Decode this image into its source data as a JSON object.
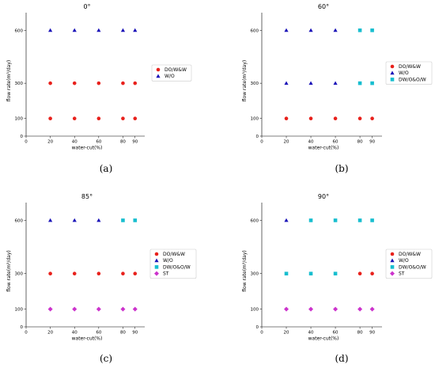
{
  "colors": {
    "DO/W&W": "#e8211c",
    "W/O": "#1a12b8",
    "DW/O&O/W": "#17becf",
    "ST": "#cc33cc"
  },
  "chart_data": [
    {
      "type": "scatter",
      "title": "0°",
      "caption": "(a)",
      "xlabel": "water-cut(%)",
      "ylabel": "flow rate(m³/day)",
      "xticks": [
        0,
        20,
        40,
        60,
        80,
        90
      ],
      "yticks": [
        0,
        100,
        300,
        600
      ],
      "xlim": [
        0,
        98
      ],
      "ylim": [
        0,
        700
      ],
      "legend_position": "right",
      "series": [
        {
          "name": "DO/W&W",
          "marker": "circle",
          "points": [
            [
              20,
              100
            ],
            [
              40,
              100
            ],
            [
              60,
              100
            ],
            [
              80,
              100
            ],
            [
              90,
              100
            ],
            [
              20,
              300
            ],
            [
              40,
              300
            ],
            [
              60,
              300
            ],
            [
              80,
              300
            ],
            [
              90,
              300
            ]
          ]
        },
        {
          "name": "W/O",
          "marker": "triangle",
          "points": [
            [
              20,
              600
            ],
            [
              40,
              600
            ],
            [
              60,
              600
            ],
            [
              80,
              600
            ],
            [
              90,
              600
            ]
          ]
        }
      ]
    },
    {
      "type": "scatter",
      "title": "60°",
      "caption": "(b)",
      "xlabel": "water-cut(%)",
      "ylabel": "flow rate(m³/day)",
      "xticks": [
        0,
        20,
        40,
        60,
        80,
        90
      ],
      "yticks": [
        0,
        100,
        300,
        600
      ],
      "xlim": [
        0,
        98
      ],
      "ylim": [
        0,
        700
      ],
      "legend_position": "right",
      "series": [
        {
          "name": "DO/W&W",
          "marker": "circle",
          "points": [
            [
              20,
              100
            ],
            [
              40,
              100
            ],
            [
              60,
              100
            ],
            [
              80,
              100
            ],
            [
              90,
              100
            ]
          ]
        },
        {
          "name": "W/O",
          "marker": "triangle",
          "points": [
            [
              20,
              300
            ],
            [
              40,
              300
            ],
            [
              60,
              300
            ],
            [
              20,
              600
            ],
            [
              40,
              600
            ],
            [
              60,
              600
            ]
          ]
        },
        {
          "name": "DW/O&O/W",
          "marker": "square",
          "points": [
            [
              80,
              300
            ],
            [
              90,
              300
            ],
            [
              80,
              600
            ],
            [
              90,
              600
            ]
          ]
        }
      ]
    },
    {
      "type": "scatter",
      "title": "85°",
      "caption": "(c)",
      "xlabel": "water-cut(%)",
      "ylabel": "flow rate(m³/day)",
      "xticks": [
        0,
        20,
        40,
        60,
        80,
        90
      ],
      "yticks": [
        0,
        100,
        300,
        600
      ],
      "xlim": [
        0,
        98
      ],
      "ylim": [
        0,
        700
      ],
      "legend_position": "right",
      "series": [
        {
          "name": "DO/W&W",
          "marker": "circle",
          "points": [
            [
              20,
              300
            ],
            [
              40,
              300
            ],
            [
              60,
              300
            ],
            [
              80,
              300
            ],
            [
              90,
              300
            ]
          ]
        },
        {
          "name": "W/O",
          "marker": "triangle",
          "points": [
            [
              20,
              600
            ],
            [
              40,
              600
            ],
            [
              60,
              600
            ]
          ]
        },
        {
          "name": "DW/O&O/W",
          "marker": "square",
          "points": [
            [
              80,
              600
            ],
            [
              90,
              600
            ]
          ]
        },
        {
          "name": "ST",
          "marker": "diamond",
          "points": [
            [
              20,
              100
            ],
            [
              40,
              100
            ],
            [
              60,
              100
            ],
            [
              80,
              100
            ],
            [
              90,
              100
            ]
          ]
        }
      ]
    },
    {
      "type": "scatter",
      "title": "90°",
      "caption": "(d)",
      "xlabel": "water-cut(%)",
      "ylabel": "flow rate(m³/day)",
      "xticks": [
        0,
        20,
        40,
        60,
        80,
        90
      ],
      "yticks": [
        0,
        100,
        300,
        600
      ],
      "xlim": [
        0,
        98
      ],
      "ylim": [
        0,
        700
      ],
      "legend_position": "right",
      "series": [
        {
          "name": "DO/W&W",
          "marker": "circle",
          "points": [
            [
              80,
              300
            ],
            [
              90,
              300
            ]
          ]
        },
        {
          "name": "W/O",
          "marker": "triangle",
          "points": [
            [
              20,
              600
            ]
          ]
        },
        {
          "name": "DW/O&O/W",
          "marker": "square",
          "points": [
            [
              20,
              300
            ],
            [
              40,
              300
            ],
            [
              60,
              300
            ],
            [
              40,
              600
            ],
            [
              60,
              600
            ],
            [
              80,
              600
            ],
            [
              90,
              600
            ]
          ]
        },
        {
          "name": "ST",
          "marker": "diamond",
          "points": [
            [
              20,
              100
            ],
            [
              40,
              100
            ],
            [
              60,
              100
            ],
            [
              80,
              100
            ],
            [
              90,
              100
            ]
          ]
        }
      ]
    }
  ]
}
